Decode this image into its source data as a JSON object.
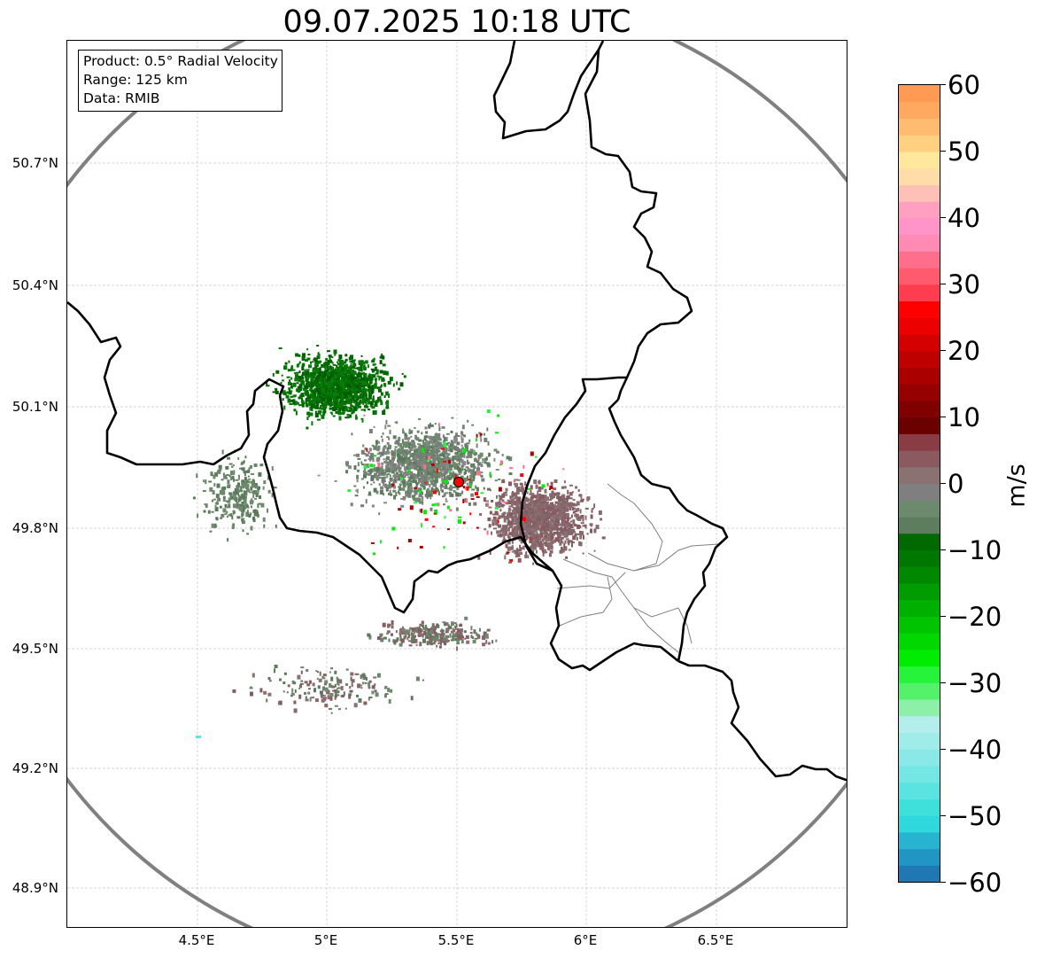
{
  "title": "09.07.2025 10:18 UTC",
  "info_box": {
    "product": "Product: 0.5° Radial Velocity",
    "range": "Range: 125 km",
    "data": "Data: RMIB"
  },
  "map": {
    "lat_labels": [
      "50.7°N",
      "50.4°N",
      "50.1°N",
      "49.8°N",
      "49.5°N",
      "49.2°N",
      "48.9°N"
    ],
    "lon_labels": [
      "4.5°E",
      "5°E",
      "5.5°E",
      "6°E",
      "6.5°E"
    ],
    "radar_site": {
      "lon": 5.5,
      "lat": 49.91
    },
    "range_km": 125,
    "range_ring_color": "#808080",
    "border_color": "#000000",
    "admin_border_color": "#808080",
    "grid": "dashed, light gray"
  },
  "colorbar": {
    "unit": "m/s",
    "tick_labels": [
      "60",
      "50",
      "40",
      "30",
      "20",
      "10",
      "0",
      "−10",
      "−20",
      "−30",
      "−40",
      "−50",
      "−60"
    ],
    "min": -60,
    "max": 60,
    "colors_bottom_to_top": [
      "#1f77b4",
      "#2196c4",
      "#27b4d0",
      "#2ed8dc",
      "#3fe0dc",
      "#5ae3e0",
      "#74e6e4",
      "#8ae9e6",
      "#a0ece9",
      "#b3eeec",
      "#8df0a8",
      "#54f26a",
      "#26f43a",
      "#00ec00",
      "#00d800",
      "#00c400",
      "#00b000",
      "#009c00",
      "#008800",
      "#007800",
      "#006a00",
      "#5e7d5e",
      "#6e8a6e",
      "#7f7f7f",
      "#8a7272",
      "#8a5a60",
      "#8a3c44",
      "#6a0000",
      "#800000",
      "#950000",
      "#aa0000",
      "#bf0000",
      "#d40000",
      "#ec0000",
      "#ff0000",
      "#ff3c50",
      "#ff5a6e",
      "#ff6e8a",
      "#ff8ab4",
      "#ff94c8",
      "#ffa0c0",
      "#ffc0b8",
      "#ffdca8",
      "#ffe89e",
      "#ffd080",
      "#ffbc70",
      "#ffa860",
      "#ff9a55"
    ]
  }
}
